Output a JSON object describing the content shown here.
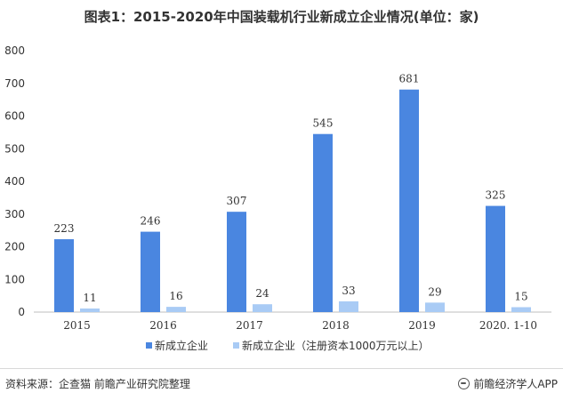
{
  "title": "图表1：2015-2020年中国装载机行业新成立企业情况(单位：家)",
  "footer": {
    "source": "资料来源：企查猫 前瞻产业研究院整理",
    "brand": "前瞻经济学人APP"
  },
  "chart_data": {
    "type": "bar",
    "categories": [
      "2015",
      "2016",
      "2017",
      "2018",
      "2019",
      "2020. 1-10"
    ],
    "series": [
      {
        "name": "新成立企业",
        "color": "#4a86e0",
        "values": [
          223,
          246,
          307,
          545,
          681,
          325
        ]
      },
      {
        "name": "新成立企业（注册资本1000万元以上）",
        "color": "#a9cbf5",
        "values": [
          11,
          16,
          24,
          33,
          29,
          15
        ]
      }
    ],
    "yticks": [
      0,
      100,
      200,
      300,
      400,
      500,
      600,
      700,
      800
    ],
    "ylim": [
      0,
      800
    ],
    "grid": false,
    "legend": "bottom"
  }
}
